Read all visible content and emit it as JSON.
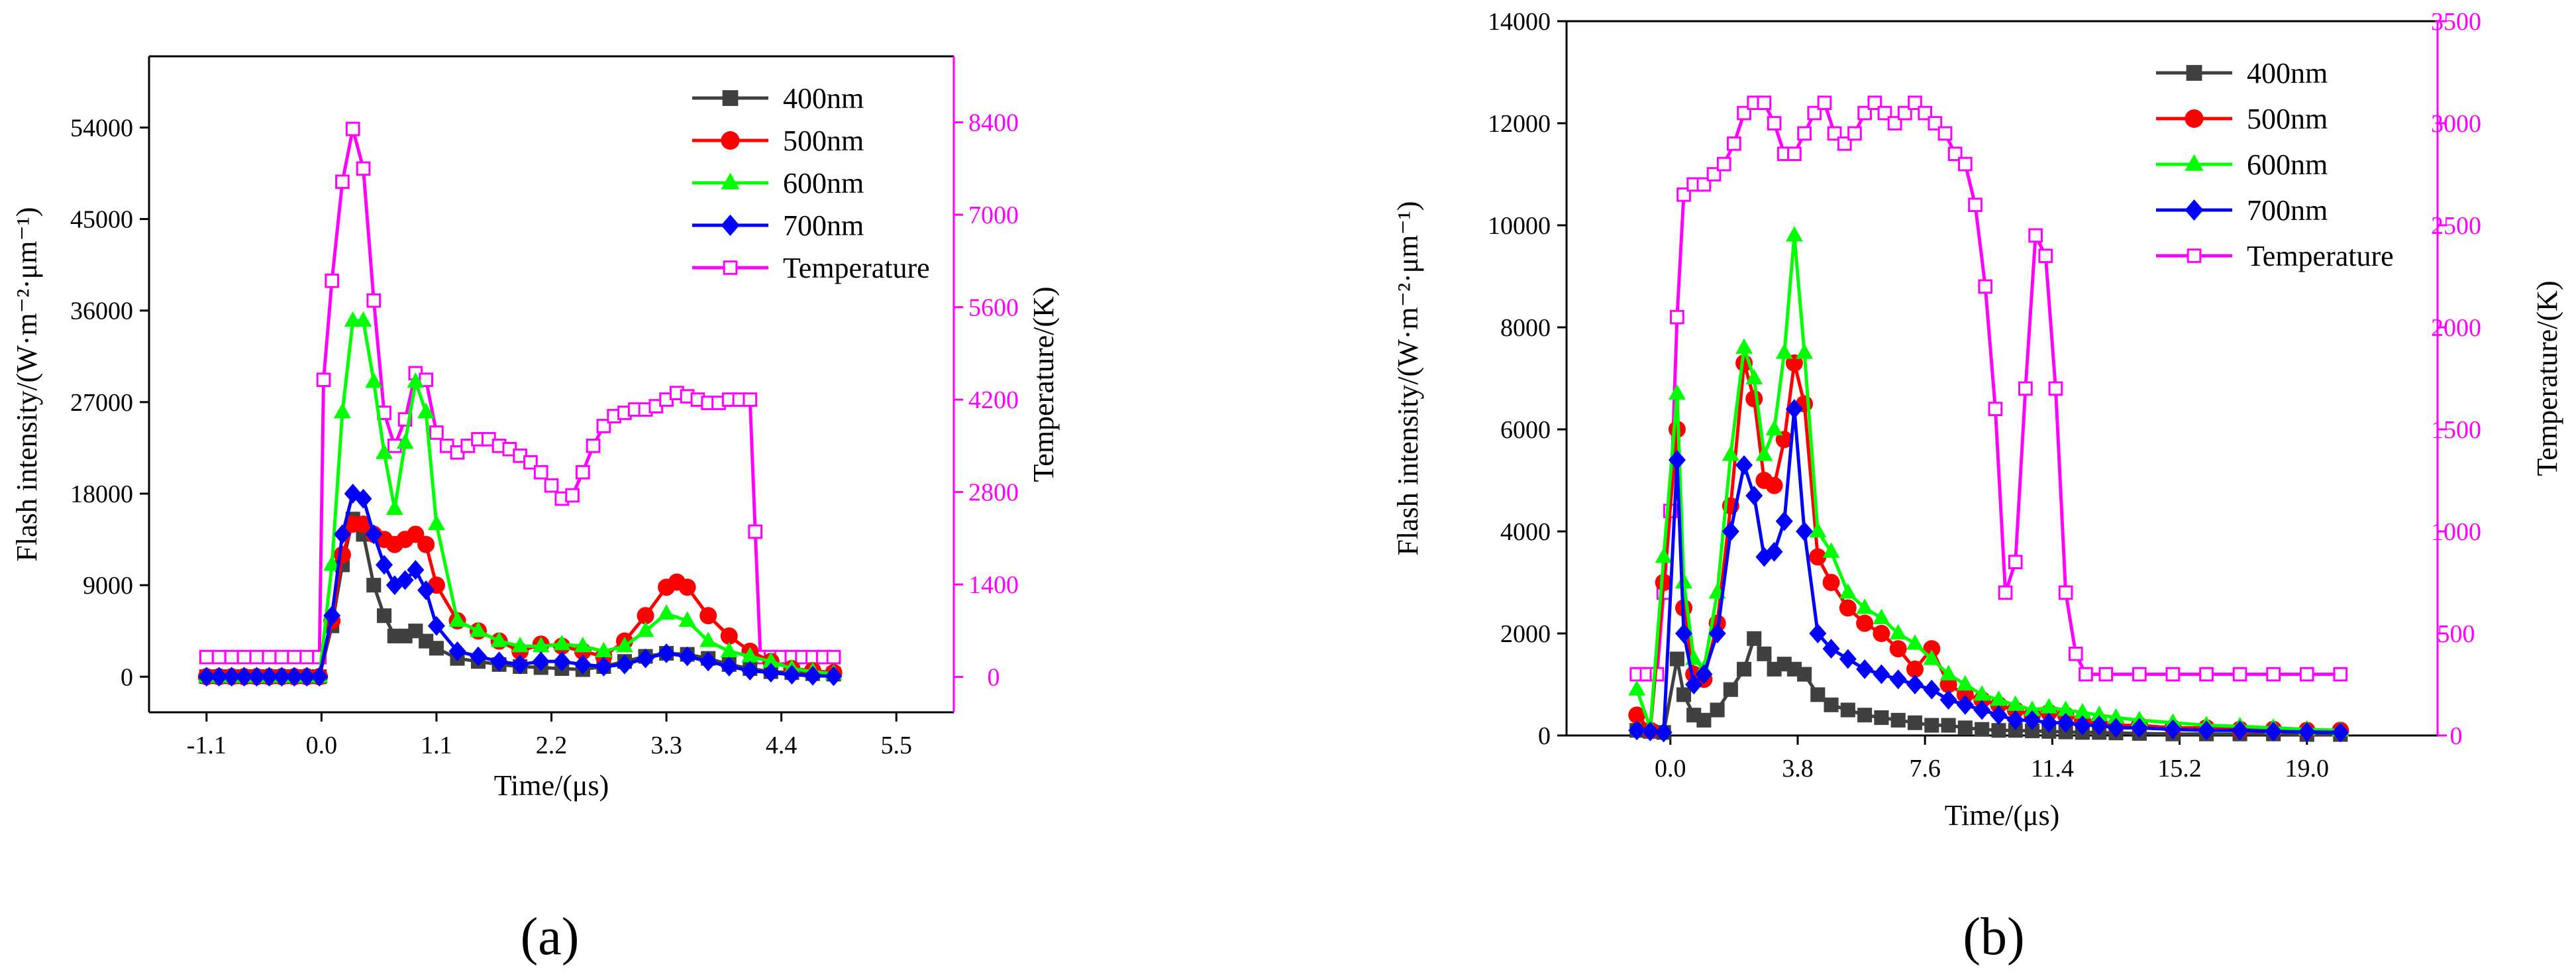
{
  "chart_data": [
    {
      "id": "a",
      "type": "line",
      "panel_label": "(a)",
      "xlabel": "Time/(μs)",
      "ylabel_left": "Flash intensity/(W·m⁻²·μm⁻¹)",
      "ylabel_right": "Temperature/(K)",
      "xlim": [
        -1.65,
        6.05
      ],
      "ylim_left": [
        -3500,
        61000
      ],
      "ylim_right": [
        -536,
        9400
      ],
      "xticks": [
        -1.1,
        0.0,
        1.1,
        2.2,
        3.3,
        4.4,
        5.5
      ],
      "xtick_labels": [
        "-1.1",
        "0.0",
        "1.1",
        "2.2",
        "3.3",
        "4.4",
        "5.5"
      ],
      "yticks_left": [
        0,
        9000,
        18000,
        27000,
        36000,
        45000,
        54000
      ],
      "yticks_right": [
        0,
        1400,
        2800,
        4200,
        5600,
        7000,
        8400
      ],
      "legend_position": "top-right",
      "series": [
        {
          "name": "400nm",
          "axis": "left",
          "color": "#404040",
          "marker": "square",
          "x": [
            -1.1,
            -0.98,
            -0.86,
            -0.74,
            -0.62,
            -0.5,
            -0.38,
            -0.26,
            -0.14,
            -0.02,
            0.1,
            0.2,
            0.3,
            0.4,
            0.5,
            0.6,
            0.7,
            0.8,
            0.9,
            1.0,
            1.1,
            1.3,
            1.5,
            1.7,
            1.9,
            2.1,
            2.3,
            2.5,
            2.7,
            2.9,
            3.1,
            3.3,
            3.5,
            3.7,
            3.9,
            4.1,
            4.3,
            4.5,
            4.7,
            4.9
          ],
          "y": [
            0,
            0,
            0,
            0,
            0,
            0,
            0,
            0,
            0,
            0,
            5000,
            11000,
            15500,
            14000,
            9000,
            6000,
            4000,
            4000,
            4500,
            3500,
            2800,
            1800,
            1500,
            1200,
            1000,
            900,
            800,
            700,
            1000,
            1500,
            2000,
            2300,
            2200,
            1800,
            1200,
            800,
            500,
            400,
            300,
            250
          ]
        },
        {
          "name": "500nm",
          "axis": "left",
          "color": "#ff0000",
          "marker": "circle",
          "x": [
            -1.1,
            -0.98,
            -0.86,
            -0.74,
            -0.62,
            -0.5,
            -0.38,
            -0.26,
            -0.14,
            -0.02,
            0.1,
            0.2,
            0.3,
            0.4,
            0.5,
            0.6,
            0.7,
            0.8,
            0.9,
            1.0,
            1.1,
            1.3,
            1.5,
            1.7,
            1.9,
            2.1,
            2.3,
            2.5,
            2.7,
            2.9,
            3.1,
            3.3,
            3.4,
            3.5,
            3.7,
            3.9,
            4.1,
            4.3,
            4.5,
            4.7,
            4.9
          ],
          "y": [
            0,
            0,
            0,
            0,
            0,
            0,
            0,
            0,
            0,
            0,
            5500,
            12000,
            15000,
            15000,
            14000,
            13500,
            13000,
            13500,
            14000,
            13000,
            9000,
            5500,
            4500,
            3500,
            2500,
            3200,
            3000,
            2500,
            2000,
            3500,
            6000,
            8800,
            9300,
            8800,
            6000,
            4000,
            2500,
            1500,
            800,
            600,
            400
          ]
        },
        {
          "name": "600nm",
          "axis": "left",
          "color": "#00ff00",
          "marker": "triangle",
          "x": [
            -1.1,
            -0.98,
            -0.86,
            -0.74,
            -0.62,
            -0.5,
            -0.38,
            -0.26,
            -0.14,
            -0.02,
            0.1,
            0.2,
            0.3,
            0.4,
            0.5,
            0.6,
            0.7,
            0.8,
            0.9,
            1.0,
            1.1,
            1.3,
            1.5,
            1.7,
            1.9,
            2.1,
            2.3,
            2.5,
            2.7,
            2.9,
            3.1,
            3.3,
            3.5,
            3.7,
            3.9,
            4.1,
            4.3,
            4.5,
            4.7,
            4.9
          ],
          "y": [
            0,
            0,
            0,
            0,
            0,
            0,
            0,
            0,
            0,
            0,
            11000,
            26000,
            35000,
            35000,
            29000,
            22000,
            16500,
            23000,
            29000,
            26000,
            15000,
            5500,
            4500,
            3500,
            3000,
            3000,
            3200,
            3000,
            2500,
            3000,
            4500,
            6200,
            5500,
            3500,
            2500,
            2000,
            1500,
            800,
            500,
            300
          ]
        },
        {
          "name": "700nm",
          "axis": "left",
          "color": "#0000ff",
          "marker": "diamond",
          "x": [
            -1.1,
            -0.98,
            -0.86,
            -0.74,
            -0.62,
            -0.5,
            -0.38,
            -0.26,
            -0.14,
            -0.02,
            0.1,
            0.2,
            0.3,
            0.4,
            0.5,
            0.6,
            0.7,
            0.8,
            0.9,
            1.0,
            1.1,
            1.3,
            1.5,
            1.7,
            1.9,
            2.1,
            2.3,
            2.5,
            2.7,
            2.9,
            3.1,
            3.3,
            3.5,
            3.7,
            3.9,
            4.1,
            4.3,
            4.5,
            4.7,
            4.9
          ],
          "y": [
            0,
            0,
            0,
            0,
            0,
            0,
            0,
            0,
            0,
            0,
            6000,
            14000,
            18000,
            17500,
            14000,
            11000,
            9000,
            9500,
            10500,
            8500,
            5000,
            2500,
            2000,
            1500,
            1200,
            1500,
            1500,
            1200,
            1000,
            1200,
            1800,
            2300,
            2000,
            1500,
            1000,
            600,
            400,
            200,
            100,
            50
          ]
        },
        {
          "name": "Temperature",
          "axis": "right",
          "color": "#ff00ff",
          "marker": "open-square",
          "x": [
            -1.1,
            -0.98,
            -0.86,
            -0.74,
            -0.62,
            -0.5,
            -0.38,
            -0.26,
            -0.14,
            -0.02,
            0.02,
            0.1,
            0.2,
            0.3,
            0.4,
            0.5,
            0.6,
            0.7,
            0.8,
            0.9,
            1.0,
            1.1,
            1.2,
            1.3,
            1.4,
            1.5,
            1.6,
            1.7,
            1.8,
            1.9,
            2.0,
            2.1,
            2.2,
            2.3,
            2.4,
            2.5,
            2.6,
            2.7,
            2.8,
            2.9,
            3.0,
            3.1,
            3.2,
            3.3,
            3.4,
            3.5,
            3.6,
            3.7,
            3.8,
            3.9,
            4.0,
            4.1,
            4.15,
            4.2,
            4.3,
            4.4,
            4.5,
            4.6,
            4.7,
            4.8,
            4.9
          ],
          "y": [
            300,
            300,
            300,
            300,
            300,
            300,
            300,
            300,
            300,
            300,
            4500,
            6000,
            7500,
            8300,
            7700,
            5700,
            4000,
            3500,
            3900,
            4600,
            4500,
            3700,
            3500,
            3400,
            3500,
            3600,
            3600,
            3500,
            3450,
            3350,
            3250,
            3100,
            2900,
            2700,
            2750,
            3100,
            3500,
            3800,
            3950,
            4000,
            4050,
            4050,
            4100,
            4200,
            4300,
            4250,
            4200,
            4150,
            4150,
            4200,
            4200,
            4200,
            2200,
            300,
            300,
            300,
            300,
            300,
            300,
            300,
            300
          ]
        }
      ]
    },
    {
      "id": "b",
      "type": "line",
      "panel_label": "(b)",
      "xlabel": "Time/(μs)",
      "ylabel_left": "Flash intensity/(W·m⁻²·μm⁻¹)",
      "ylabel_right": "Temperature/(K)",
      "xlim": [
        -3.1,
        22.9
      ],
      "ylim_left": [
        0,
        14000
      ],
      "ylim_right": [
        0,
        3500
      ],
      "xticks": [
        0.0,
        3.8,
        7.6,
        11.4,
        15.2,
        19.0
      ],
      "xtick_labels": [
        "0.0",
        "3.8",
        "7.6",
        "11.4",
        "15.2",
        "19.0"
      ],
      "yticks_left": [
        0,
        2000,
        4000,
        6000,
        8000,
        10000,
        12000,
        14000
      ],
      "yticks_right": [
        0,
        500,
        1000,
        1500,
        2000,
        2500,
        3000,
        3500
      ],
      "legend_position": "top-right",
      "series": [
        {
          "name": "400nm",
          "axis": "left",
          "color": "#404040",
          "marker": "square",
          "x": [
            -1.0,
            -0.6,
            -0.2,
            0.2,
            0.4,
            0.7,
            1.0,
            1.4,
            1.8,
            2.2,
            2.5,
            2.8,
            3.1,
            3.4,
            3.7,
            4.0,
            4.4,
            4.8,
            5.3,
            5.8,
            6.3,
            6.8,
            7.3,
            7.8,
            8.3,
            8.8,
            9.3,
            9.8,
            10.3,
            10.8,
            11.3,
            11.8,
            12.3,
            12.8,
            13.3,
            14.0,
            15.0,
            16.0,
            17.0,
            18.0,
            19.0,
            20.0
          ],
          "y": [
            100,
            80,
            60,
            1500,
            800,
            400,
            300,
            500,
            900,
            1300,
            1900,
            1600,
            1300,
            1400,
            1300,
            1200,
            800,
            600,
            500,
            400,
            350,
            300,
            250,
            200,
            200,
            150,
            120,
            100,
            100,
            90,
            80,
            70,
            60,
            60,
            50,
            40,
            30,
            30,
            30,
            30,
            20,
            20
          ]
        },
        {
          "name": "500nm",
          "axis": "left",
          "color": "#ff0000",
          "marker": "circle",
          "x": [
            -1.0,
            -0.6,
            -0.2,
            0.2,
            0.4,
            0.7,
            1.0,
            1.4,
            1.8,
            2.2,
            2.5,
            2.8,
            3.1,
            3.4,
            3.7,
            4.0,
            4.4,
            4.8,
            5.3,
            5.8,
            6.3,
            6.8,
            7.3,
            7.8,
            8.3,
            8.8,
            9.3,
            9.8,
            10.3,
            10.8,
            11.3,
            11.8,
            12.3,
            12.8,
            13.3,
            14.0,
            15.0,
            16.0,
            17.0,
            18.0,
            19.0,
            20.0
          ],
          "y": [
            400,
            100,
            3000,
            6000,
            2500,
            1200,
            1100,
            2200,
            4500,
            7300,
            6600,
            5000,
            4900,
            5800,
            7300,
            6500,
            3500,
            3000,
            2500,
            2200,
            2000,
            1700,
            1300,
            1700,
            1000,
            800,
            700,
            600,
            500,
            400,
            450,
            400,
            300,
            250,
            200,
            200,
            150,
            150,
            120,
            120,
            100,
            100
          ]
        },
        {
          "name": "600nm",
          "axis": "left",
          "color": "#00ff00",
          "marker": "triangle",
          "x": [
            -1.0,
            -0.6,
            -0.2,
            0.2,
            0.4,
            0.7,
            1.0,
            1.4,
            1.8,
            2.2,
            2.5,
            2.8,
            3.1,
            3.4,
            3.7,
            4.0,
            4.4,
            4.8,
            5.3,
            5.8,
            6.3,
            6.8,
            7.3,
            7.8,
            8.3,
            8.8,
            9.3,
            9.8,
            10.3,
            10.8,
            11.3,
            11.8,
            12.3,
            12.8,
            13.3,
            14.0,
            15.0,
            16.0,
            17.0,
            18.0,
            19.0,
            20.0
          ],
          "y": [
            900,
            150,
            3500,
            6700,
            3000,
            1500,
            1300,
            2800,
            5500,
            7600,
            7000,
            5500,
            6000,
            7500,
            9800,
            7500,
            4000,
            3600,
            2800,
            2500,
            2300,
            2000,
            1800,
            1500,
            1200,
            1000,
            800,
            700,
            600,
            500,
            550,
            500,
            450,
            400,
            350,
            300,
            250,
            200,
            180,
            150,
            120,
            100
          ]
        },
        {
          "name": "700nm",
          "axis": "left",
          "color": "#0000ff",
          "marker": "diamond",
          "x": [
            -1.0,
            -0.6,
            -0.2,
            0.2,
            0.4,
            0.7,
            1.0,
            1.4,
            1.8,
            2.2,
            2.5,
            2.8,
            3.1,
            3.4,
            3.7,
            4.0,
            4.4,
            4.8,
            5.3,
            5.8,
            6.3,
            6.8,
            7.3,
            7.8,
            8.3,
            8.8,
            9.3,
            9.8,
            10.3,
            10.8,
            11.3,
            11.8,
            12.3,
            12.8,
            13.3,
            14.0,
            15.0,
            16.0,
            17.0,
            18.0,
            19.0,
            20.0
          ],
          "y": [
            100,
            80,
            60,
            5400,
            2000,
            1000,
            1200,
            2000,
            4000,
            5300,
            4700,
            3500,
            3600,
            4200,
            6400,
            4000,
            2000,
            1700,
            1500,
            1300,
            1200,
            1100,
            1000,
            900,
            700,
            600,
            500,
            400,
            300,
            300,
            250,
            250,
            200,
            200,
            150,
            150,
            120,
            100,
            100,
            80,
            70,
            60
          ]
        },
        {
          "name": "Temperature",
          "axis": "right",
          "color": "#ff00ff",
          "marker": "open-square",
          "x": [
            -1.0,
            -0.7,
            -0.4,
            -0.2,
            0.0,
            0.2,
            0.4,
            0.7,
            1.0,
            1.3,
            1.6,
            1.9,
            2.2,
            2.5,
            2.8,
            3.1,
            3.4,
            3.7,
            4.0,
            4.3,
            4.6,
            4.9,
            5.2,
            5.5,
            5.8,
            6.1,
            6.4,
            6.7,
            7.0,
            7.3,
            7.6,
            7.9,
            8.2,
            8.5,
            8.8,
            9.1,
            9.4,
            9.7,
            10.0,
            10.3,
            10.6,
            10.9,
            11.2,
            11.5,
            11.8,
            12.1,
            12.4,
            13.0,
            14.0,
            15.0,
            16.0,
            17.0,
            18.0,
            19.0,
            20.0
          ],
          "y": [
            300,
            300,
            300,
            700,
            1100,
            2050,
            2650,
            2700,
            2700,
            2750,
            2800,
            2900,
            3050,
            3100,
            3100,
            3000,
            2850,
            2850,
            2950,
            3050,
            3100,
            2950,
            2900,
            2950,
            3050,
            3100,
            3050,
            3000,
            3050,
            3100,
            3050,
            3000,
            2950,
            2850,
            2800,
            2600,
            2200,
            1600,
            700,
            850,
            1700,
            2450,
            2350,
            1700,
            700,
            400,
            300,
            300,
            300,
            300,
            300,
            300,
            300,
            300,
            300
          ]
        }
      ]
    }
  ]
}
